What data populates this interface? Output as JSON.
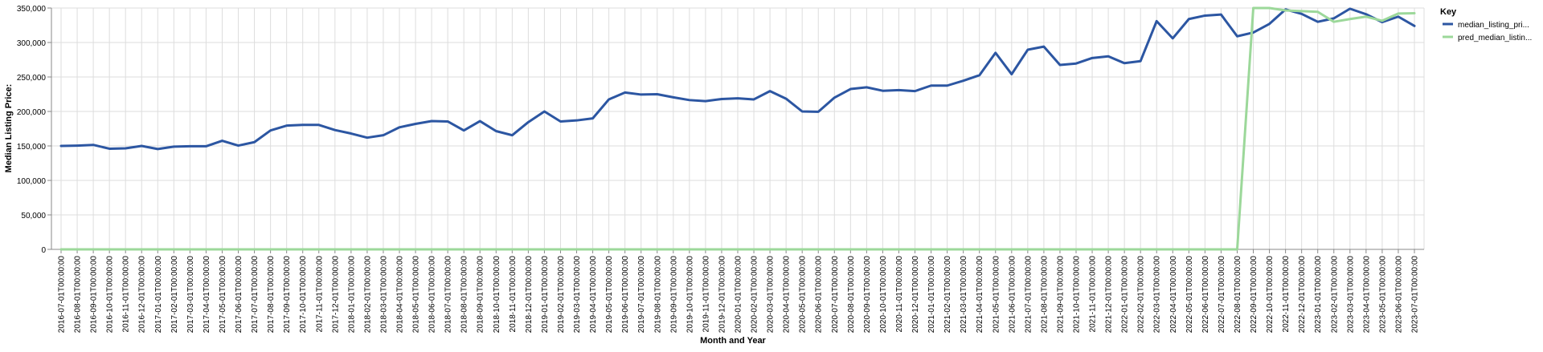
{
  "chart_data": {
    "type": "line",
    "title": "",
    "xlabel": "Month and Year",
    "ylabel": "Median Listing Price:",
    "ylim": [
      0,
      350000
    ],
    "y_ticks": [
      0,
      50000,
      100000,
      150000,
      200000,
      250000,
      300000,
      350000
    ],
    "y_tick_labels": [
      "0",
      "50,000",
      "100,000",
      "150,000",
      "200,000",
      "250,000",
      "300,000",
      "350,000"
    ],
    "grid": true,
    "legend": {
      "title": "Key",
      "placement": "right"
    },
    "categories": [
      "2016-07-01T00:00:00",
      "2016-08-01T00:00:00",
      "2016-09-01T00:00:00",
      "2016-10-01T00:00:00",
      "2016-11-01T00:00:00",
      "2016-12-01T00:00:00",
      "2017-01-01T00:00:00",
      "2017-02-01T00:00:00",
      "2017-03-01T00:00:00",
      "2017-04-01T00:00:00",
      "2017-05-01T00:00:00",
      "2017-06-01T00:00:00",
      "2017-07-01T00:00:00",
      "2017-08-01T00:00:00",
      "2017-09-01T00:00:00",
      "2017-10-01T00:00:00",
      "2017-11-01T00:00:00",
      "2017-12-01T00:00:00",
      "2018-01-01T00:00:00",
      "2018-02-01T00:00:00",
      "2018-03-01T00:00:00",
      "2018-04-01T00:00:00",
      "2018-05-01T00:00:00",
      "2018-06-01T00:00:00",
      "2018-07-01T00:00:00",
      "2018-08-01T00:00:00",
      "2018-09-01T00:00:00",
      "2018-10-01T00:00:00",
      "2018-11-01T00:00:00",
      "2018-12-01T00:00:00",
      "2019-01-01T00:00:00",
      "2019-02-01T00:00:00",
      "2019-03-01T00:00:00",
      "2019-04-01T00:00:00",
      "2019-05-01T00:00:00",
      "2019-06-01T00:00:00",
      "2019-07-01T00:00:00",
      "2019-08-01T00:00:00",
      "2019-09-01T00:00:00",
      "2019-10-01T00:00:00",
      "2019-11-01T00:00:00",
      "2019-12-01T00:00:00",
      "2020-01-01T00:00:00",
      "2020-02-01T00:00:00",
      "2020-03-01T00:00:00",
      "2020-04-01T00:00:00",
      "2020-05-01T00:00:00",
      "2020-06-01T00:00:00",
      "2020-07-01T00:00:00",
      "2020-08-01T00:00:00",
      "2020-09-01T00:00:00",
      "2020-10-01T00:00:00",
      "2020-11-01T00:00:00",
      "2020-12-01T00:00:00",
      "2021-01-01T00:00:00",
      "2021-02-01T00:00:00",
      "2021-03-01T00:00:00",
      "2021-04-01T00:00:00",
      "2021-05-01T00:00:00",
      "2021-06-01T00:00:00",
      "2021-07-01T00:00:00",
      "2021-08-01T00:00:00",
      "2021-09-01T00:00:00",
      "2021-10-01T00:00:00",
      "2021-11-01T00:00:00",
      "2021-12-01T00:00:00",
      "2022-01-01T00:00:00",
      "2022-02-01T00:00:00",
      "2022-03-01T00:00:00",
      "2022-04-01T00:00:00",
      "2022-05-01T00:00:00",
      "2022-06-01T00:00:00",
      "2022-07-01T00:00:00",
      "2022-08-01T00:00:00",
      "2022-09-01T00:00:00",
      "2022-10-01T00:00:00",
      "2022-11-01T00:00:00",
      "2022-12-01T00:00:00",
      "2023-01-01T00:00:00",
      "2023-02-01T00:00:00",
      "2023-03-01T00:00:00",
      "2023-04-01T00:00:00",
      "2023-05-01T00:00:00",
      "2023-06-01T00:00:00",
      "2023-07-01T00:00:00"
    ],
    "series": [
      {
        "name": "median_listing_pri...",
        "color": "#2c56a2",
        "values": [
          150000,
          150500,
          151500,
          146000,
          146500,
          150000,
          145500,
          149000,
          149500,
          149500,
          157500,
          150500,
          155500,
          172500,
          179500,
          180500,
          180500,
          173000,
          168000,
          162000,
          165500,
          177000,
          182000,
          186000,
          185500,
          172500,
          186000,
          171500,
          165500,
          184500,
          200000,
          185500,
          187000,
          190000,
          217500,
          227500,
          224500,
          225000,
          220500,
          216500,
          215000,
          218000,
          219000,
          217500,
          229500,
          218500,
          200000,
          199500,
          220000,
          232500,
          235000,
          230000,
          231000,
          229500,
          237500,
          237500,
          244500,
          252500,
          285000,
          254000,
          289500,
          294000,
          267500,
          269500,
          277500,
          280000,
          270000,
          273000,
          331000,
          306000,
          334000,
          339000,
          340500,
          309000,
          314500,
          327000,
          348000,
          341500,
          330000,
          335000,
          349000,
          341000,
          329500,
          337500,
          324000
        ]
      },
      {
        "name": "pred_median_listin...",
        "color": "#9cd89a",
        "values": [
          0,
          0,
          0,
          0,
          0,
          0,
          0,
          0,
          0,
          0,
          0,
          0,
          0,
          0,
          0,
          0,
          0,
          0,
          0,
          0,
          0,
          0,
          0,
          0,
          0,
          0,
          0,
          0,
          0,
          0,
          0,
          0,
          0,
          0,
          0,
          0,
          0,
          0,
          0,
          0,
          0,
          0,
          0,
          0,
          0,
          0,
          0,
          0,
          0,
          0,
          0,
          0,
          0,
          0,
          0,
          0,
          0,
          0,
          0,
          0,
          0,
          0,
          0,
          0,
          0,
          0,
          0,
          0,
          0,
          0,
          0,
          0,
          0,
          0,
          350000,
          350000,
          346500,
          345500,
          344500,
          330000,
          334000,
          337500,
          331500,
          342000,
          342500
        ]
      }
    ]
  }
}
